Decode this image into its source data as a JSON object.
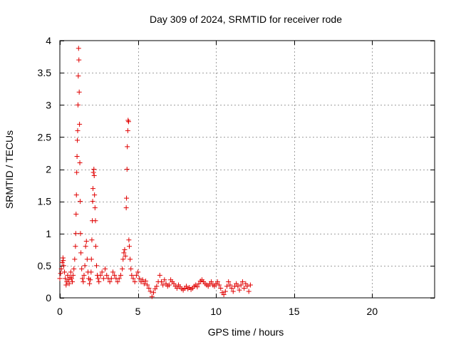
{
  "chart_data": {
    "type": "scatter",
    "title": "Day 309 of 2024, SRMTID for receiver rode",
    "xlabel": "GPS time / hours",
    "ylabel": "SRMTID / TECUs",
    "xlim": [
      0,
      24
    ],
    "ylim": [
      0,
      4
    ],
    "xticks": [
      0,
      5,
      10,
      15,
      20
    ],
    "yticks": [
      0,
      0.5,
      1,
      1.5,
      2,
      2.5,
      3,
      3.5,
      4
    ],
    "grid": true,
    "marker": "+",
    "color": "#e00000",
    "series": [
      {
        "name": "SRMTID",
        "points": [
          [
            0.0,
            0.3
          ],
          [
            0.05,
            0.38
          ],
          [
            0.1,
            0.45
          ],
          [
            0.15,
            0.55
          ],
          [
            0.2,
            0.62
          ],
          [
            0.22,
            0.58
          ],
          [
            0.25,
            0.5
          ],
          [
            0.3,
            0.4
          ],
          [
            0.35,
            0.3
          ],
          [
            0.4,
            0.2
          ],
          [
            0.45,
            0.25
          ],
          [
            0.5,
            0.35
          ],
          [
            0.55,
            0.28
          ],
          [
            0.6,
            0.22
          ],
          [
            0.65,
            0.32
          ],
          [
            0.7,
            0.4
          ],
          [
            0.75,
            0.3
          ],
          [
            0.8,
            0.25
          ],
          [
            0.85,
            0.35
          ],
          [
            0.9,
            0.45
          ],
          [
            0.95,
            0.6
          ],
          [
            1.0,
            0.8
          ],
          [
            1.02,
            1.0
          ],
          [
            1.04,
            1.3
          ],
          [
            1.06,
            1.6
          ],
          [
            1.08,
            1.95
          ],
          [
            1.1,
            2.2
          ],
          [
            1.12,
            2.45
          ],
          [
            1.14,
            2.6
          ],
          [
            1.16,
            3.0
          ],
          [
            1.18,
            3.45
          ],
          [
            1.2,
            3.88
          ],
          [
            1.22,
            3.7
          ],
          [
            1.24,
            3.2
          ],
          [
            1.26,
            2.7
          ],
          [
            1.28,
            2.1
          ],
          [
            1.3,
            1.5
          ],
          [
            1.32,
            1.0
          ],
          [
            1.35,
            0.7
          ],
          [
            1.4,
            0.45
          ],
          [
            1.45,
            0.3
          ],
          [
            1.5,
            0.25
          ],
          [
            1.55,
            0.35
          ],
          [
            1.6,
            0.5
          ],
          [
            1.65,
            0.8
          ],
          [
            1.7,
            0.88
          ],
          [
            1.75,
            0.6
          ],
          [
            1.8,
            0.4
          ],
          [
            1.85,
            0.3
          ],
          [
            1.9,
            0.22
          ],
          [
            1.95,
            0.28
          ],
          [
            2.0,
            0.4
          ],
          [
            2.02,
            0.6
          ],
          [
            2.05,
            0.9
          ],
          [
            2.08,
            1.2
          ],
          [
            2.1,
            1.5
          ],
          [
            2.12,
            1.7
          ],
          [
            2.15,
            1.95
          ],
          [
            2.18,
            2.0
          ],
          [
            2.2,
            1.9
          ],
          [
            2.22,
            1.6
          ],
          [
            2.25,
            1.4
          ],
          [
            2.28,
            1.2
          ],
          [
            2.3,
            0.8
          ],
          [
            2.35,
            0.5
          ],
          [
            2.4,
            0.35
          ],
          [
            2.45,
            0.3
          ],
          [
            2.5,
            0.25
          ],
          [
            2.6,
            0.35
          ],
          [
            2.7,
            0.4
          ],
          [
            2.8,
            0.3
          ],
          [
            2.9,
            0.45
          ],
          [
            3.0,
            0.35
          ],
          [
            3.1,
            0.3
          ],
          [
            3.2,
            0.25
          ],
          [
            3.3,
            0.3
          ],
          [
            3.4,
            0.4
          ],
          [
            3.5,
            0.35
          ],
          [
            3.6,
            0.3
          ],
          [
            3.7,
            0.25
          ],
          [
            3.8,
            0.3
          ],
          [
            3.9,
            0.35
          ],
          [
            4.0,
            0.45
          ],
          [
            4.05,
            0.6
          ],
          [
            4.1,
            0.7
          ],
          [
            4.15,
            0.75
          ],
          [
            4.2,
            0.65
          ],
          [
            4.25,
            1.4
          ],
          [
            4.27,
            1.55
          ],
          [
            4.3,
            2.0
          ],
          [
            4.32,
            2.35
          ],
          [
            4.35,
            2.6
          ],
          [
            4.37,
            2.76
          ],
          [
            4.4,
            2.74
          ],
          [
            4.42,
            0.9
          ],
          [
            4.45,
            0.8
          ],
          [
            4.5,
            0.6
          ],
          [
            4.55,
            0.45
          ],
          [
            4.6,
            0.35
          ],
          [
            4.7,
            0.3
          ],
          [
            4.8,
            0.25
          ],
          [
            4.9,
            0.35
          ],
          [
            5.0,
            0.4
          ],
          [
            5.1,
            0.3
          ],
          [
            5.2,
            0.25
          ],
          [
            5.3,
            0.28
          ],
          [
            5.4,
            0.22
          ],
          [
            5.5,
            0.26
          ],
          [
            5.6,
            0.2
          ],
          [
            5.7,
            0.15
          ],
          [
            5.8,
            0.1
          ],
          [
            5.9,
            0.02
          ],
          [
            6.0,
            0.08
          ],
          [
            6.1,
            0.14
          ],
          [
            6.2,
            0.18
          ],
          [
            6.3,
            0.25
          ],
          [
            6.4,
            0.35
          ],
          [
            6.5,
            0.25
          ],
          [
            6.6,
            0.2
          ],
          [
            6.7,
            0.28
          ],
          [
            6.8,
            0.22
          ],
          [
            6.9,
            0.18
          ],
          [
            7.0,
            0.2
          ],
          [
            7.1,
            0.28
          ],
          [
            7.2,
            0.25
          ],
          [
            7.3,
            0.22
          ],
          [
            7.4,
            0.18
          ],
          [
            7.5,
            0.15
          ],
          [
            7.6,
            0.2
          ],
          [
            7.7,
            0.17
          ],
          [
            7.8,
            0.14
          ],
          [
            7.9,
            0.12
          ],
          [
            8.0,
            0.15
          ],
          [
            8.1,
            0.18
          ],
          [
            8.2,
            0.14
          ],
          [
            8.3,
            0.16
          ],
          [
            8.4,
            0.13
          ],
          [
            8.5,
            0.15
          ],
          [
            8.6,
            0.18
          ],
          [
            8.7,
            0.2
          ],
          [
            8.8,
            0.17
          ],
          [
            8.9,
            0.22
          ],
          [
            9.0,
            0.26
          ],
          [
            9.1,
            0.28
          ],
          [
            9.2,
            0.25
          ],
          [
            9.3,
            0.22
          ],
          [
            9.4,
            0.2
          ],
          [
            9.5,
            0.18
          ],
          [
            9.6,
            0.22
          ],
          [
            9.7,
            0.25
          ],
          [
            9.8,
            0.2
          ],
          [
            9.9,
            0.18
          ],
          [
            10.0,
            0.22
          ],
          [
            10.1,
            0.25
          ],
          [
            10.2,
            0.2
          ],
          [
            10.3,
            0.15
          ],
          [
            10.4,
            0.08
          ],
          [
            10.5,
            0.05
          ],
          [
            10.6,
            0.1
          ],
          [
            10.7,
            0.18
          ],
          [
            10.8,
            0.25
          ],
          [
            10.9,
            0.2
          ],
          [
            11.0,
            0.15
          ],
          [
            11.1,
            0.1
          ],
          [
            11.2,
            0.18
          ],
          [
            11.3,
            0.22
          ],
          [
            11.4,
            0.18
          ],
          [
            11.5,
            0.12
          ],
          [
            11.6,
            0.2
          ],
          [
            11.7,
            0.25
          ],
          [
            11.8,
            0.15
          ],
          [
            11.9,
            0.22
          ],
          [
            12.0,
            0.18
          ],
          [
            12.1,
            0.1
          ],
          [
            12.2,
            0.2
          ]
        ]
      }
    ]
  }
}
